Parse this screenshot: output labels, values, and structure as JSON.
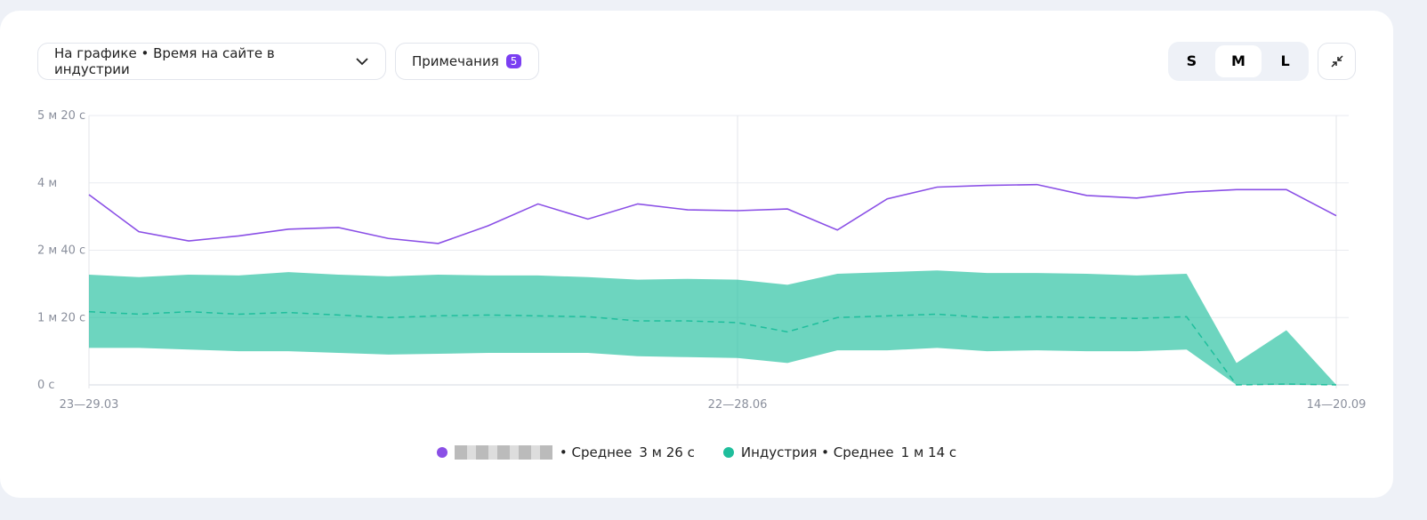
{
  "controls": {
    "dropdown": "На графике • Время на сайте в индустрии",
    "notes": "Примечания",
    "notes_count": "5",
    "sizes": [
      "S",
      "M",
      "L"
    ]
  },
  "chart_data": {
    "type": "line",
    "categories": [
      "23—29.03",
      null,
      null,
      null,
      null,
      null,
      null,
      null,
      null,
      null,
      null,
      null,
      null,
      "22—28.06",
      null,
      null,
      null,
      null,
      null,
      null,
      null,
      null,
      null,
      null,
      null,
      "14—20.09"
    ],
    "ylim": [
      0,
      320
    ],
    "yticks": [
      {
        "value": 0,
        "label": "0 с"
      },
      {
        "value": 80,
        "label": "1 м 20 с"
      },
      {
        "value": 160,
        "label": "2 м 40 с"
      },
      {
        "value": 240,
        "label": "4 м"
      },
      {
        "value": 320,
        "label": "5 м 20 с"
      }
    ],
    "grid": true,
    "series": [
      {
        "name": "• Среднее",
        "color": "#8a4fe6",
        "values": [
          226,
          182,
          171,
          177,
          185,
          187,
          174,
          168,
          189,
          215,
          197,
          215,
          208,
          207,
          209,
          184,
          221,
          235,
          237,
          238,
          225,
          222,
          229,
          232,
          232,
          201
        ],
        "summary": {
          "value": 206,
          "label": "3 м 26 с"
        }
      },
      {
        "name": "Индустрия • Среднее",
        "color": "#1fbe9c",
        "values": [
          87,
          84,
          87,
          84,
          86,
          83,
          80,
          82,
          83,
          82,
          81,
          76,
          76,
          74,
          63,
          80,
          82,
          84,
          80,
          81,
          80,
          79,
          81,
          0,
          1,
          0
        ],
        "upper": [
          131,
          128,
          131,
          130,
          134,
          131,
          129,
          131,
          130,
          130,
          128,
          125,
          126,
          125,
          119,
          132,
          134,
          136,
          133,
          133,
          132,
          130,
          132,
          26,
          65,
          0
        ],
        "lower": [
          44,
          44,
          42,
          40,
          40,
          38,
          36,
          37,
          38,
          38,
          38,
          34,
          33,
          32,
          26,
          41,
          41,
          44,
          40,
          41,
          40,
          40,
          42,
          0,
          0,
          0
        ],
        "summary": {
          "value": 74,
          "label": "1 м 14 с"
        }
      }
    ]
  }
}
